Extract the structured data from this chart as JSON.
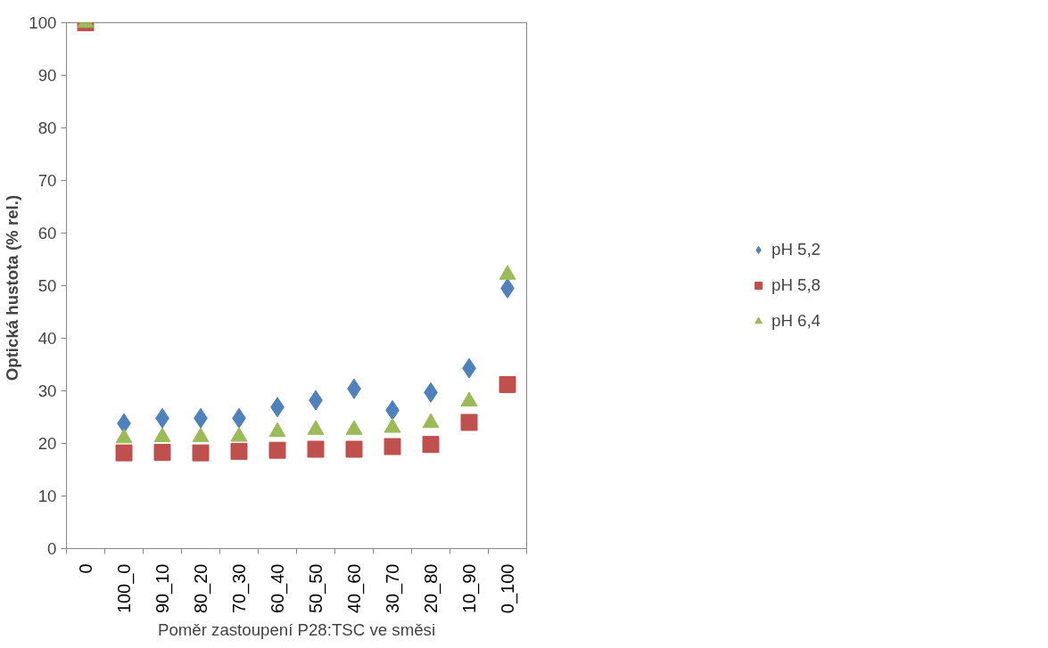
{
  "chart_data": {
    "type": "scatter",
    "xlabel": "Poměr zastoupení P28:TSC ve směsi",
    "ylabel": "Optická hustota  (% rel.)",
    "categories": [
      "0",
      "100_0",
      "90_10",
      "80_20",
      "70_30",
      "60_40",
      "50_50",
      "40_60",
      "30_70",
      "20_80",
      "10_90",
      "0_100"
    ],
    "ylim": [
      0,
      100
    ],
    "yticks": [
      0,
      10,
      20,
      30,
      40,
      50,
      60,
      70,
      80,
      90,
      100
    ],
    "grid": false,
    "legend": "right",
    "series": [
      {
        "name": "pH 5,2",
        "color": "#4f81bd",
        "marker": "diamond",
        "values": [
          null,
          23.8,
          24.8,
          24.8,
          24.8,
          26.9,
          28.2,
          30.4,
          26.3,
          29.7,
          34.3,
          49.5
        ]
      },
      {
        "name": "pH 5,8",
        "color": "#c0504d",
        "marker": "square",
        "values": [
          100,
          18.2,
          18.3,
          18.2,
          18.5,
          18.7,
          18.9,
          18.9,
          19.4,
          19.8,
          24.0,
          31.2
        ]
      },
      {
        "name": "pH 6,4",
        "color": "#9bbb59",
        "marker": "triangle",
        "values": [
          100,
          21.0,
          21.2,
          21.2,
          21.3,
          22.2,
          22.6,
          22.6,
          23.0,
          23.9,
          28.0,
          52.1
        ]
      }
    ]
  }
}
